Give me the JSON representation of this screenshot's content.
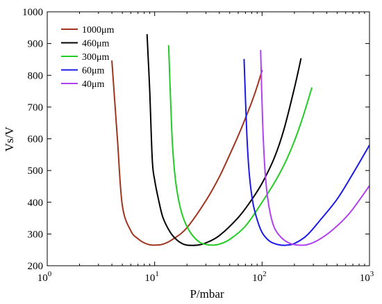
{
  "chart_data": {
    "type": "line",
    "title": "",
    "xlabel": "P/mbar",
    "ylabel": "Vs/V",
    "xscale": "log",
    "xlim": [
      1,
      1000
    ],
    "ylim": [
      200,
      1000
    ],
    "x_ticks": [
      {
        "value": 1,
        "base": "10",
        "exp": "0"
      },
      {
        "value": 10,
        "base": "10",
        "exp": "1"
      },
      {
        "value": 100,
        "base": "10",
        "exp": "2"
      },
      {
        "value": 1000,
        "base": "10",
        "exp": "3"
      }
    ],
    "y_ticks": [
      200,
      300,
      400,
      500,
      600,
      700,
      800,
      900,
      1000
    ],
    "grid": false,
    "legend_position": "top-left",
    "series": [
      {
        "name": "1000μm",
        "color": "#a0341e",
        "x": [
          4.0,
          4.5,
          5.0,
          6.0,
          7.0,
          8.0,
          9.0,
          10.0,
          12.0,
          15.0,
          20.0,
          30.0,
          40.0,
          50.0,
          60.0,
          70.0,
          80.0,
          90.0,
          100.0
        ],
        "y": [
          845,
          600,
          390,
          310,
          285,
          272,
          266,
          265,
          268,
          285,
          320,
          405,
          480,
          550,
          610,
          665,
          715,
          765,
          815
        ]
      },
      {
        "name": "460μm",
        "color": "#000000",
        "x": [
          8.5,
          9.0,
          9.5,
          10.0,
          11.0,
          12.0,
          14.0,
          16.0,
          18.0,
          20.0,
          25.0,
          30.0,
          40.0,
          60.0,
          80.0,
          100.0,
          130.0,
          160.0,
          200.0,
          230.0
        ],
        "y": [
          928,
          750,
          535,
          470,
          400,
          350,
          305,
          282,
          270,
          265,
          265,
          272,
          295,
          352,
          408,
          460,
          540,
          630,
          760,
          852
        ]
      },
      {
        "name": "300μm",
        "color": "#22cc22",
        "x": [
          13.5,
          14.5,
          15.5,
          17.0,
          19.0,
          22.0,
          26.0,
          30.0,
          35.0,
          40.0,
          50.0,
          70.0,
          100.0,
          140.0,
          180.0,
          230.0,
          290.0
        ],
        "y": [
          893,
          610,
          480,
          395,
          340,
          300,
          275,
          267,
          265,
          268,
          283,
          325,
          400,
          480,
          555,
          650,
          760
        ]
      },
      {
        "name": "60μm",
        "color": "#1a1ae6",
        "x": [
          68.0,
          72.0,
          76.0,
          82.0,
          90.0,
          100.0,
          115.0,
          130.0,
          150.0,
          170.0,
          200.0,
          260.0,
          350.0,
          500.0,
          700.0,
          1000.0
        ],
        "y": [
          850,
          620,
          490,
          400,
          345,
          305,
          280,
          270,
          265,
          265,
          270,
          295,
          345,
          410,
          490,
          580
        ]
      },
      {
        "name": "40μm",
        "color": "#b040f0",
        "x": [
          97.0,
          101.0,
          106.0,
          112.0,
          120.0,
          130.0,
          145.0,
          165.0,
          190.0,
          220.0,
          260.0,
          330.0,
          450.0,
          650.0,
          1000.0
        ],
        "y": [
          878,
          660,
          510,
          420,
          360,
          320,
          295,
          278,
          268,
          265,
          266,
          280,
          312,
          365,
          452
        ]
      }
    ]
  }
}
